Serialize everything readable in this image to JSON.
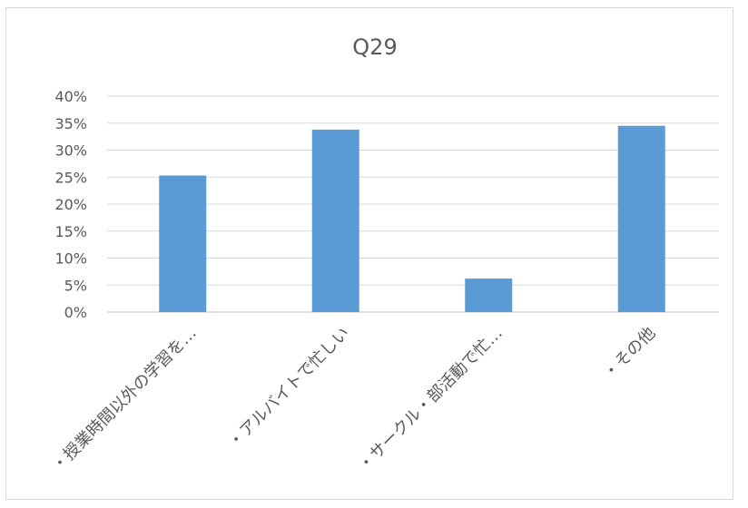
{
  "chart_data": {
    "type": "bar",
    "title": "Q29",
    "categories": [
      "・授業時間以外の学習を…",
      "・アルバイトで忙しい",
      "・サークル・部活動で忙…",
      "・その他"
    ],
    "values": [
      25.3,
      33.8,
      6.2,
      34.5
    ],
    "ylim": [
      0,
      40
    ],
    "yticks": [
      "0%",
      "5%",
      "10%",
      "15%",
      "20%",
      "25%",
      "30%",
      "35%",
      "40%"
    ],
    "grid": true,
    "bar_color": "#5b9bd5"
  }
}
